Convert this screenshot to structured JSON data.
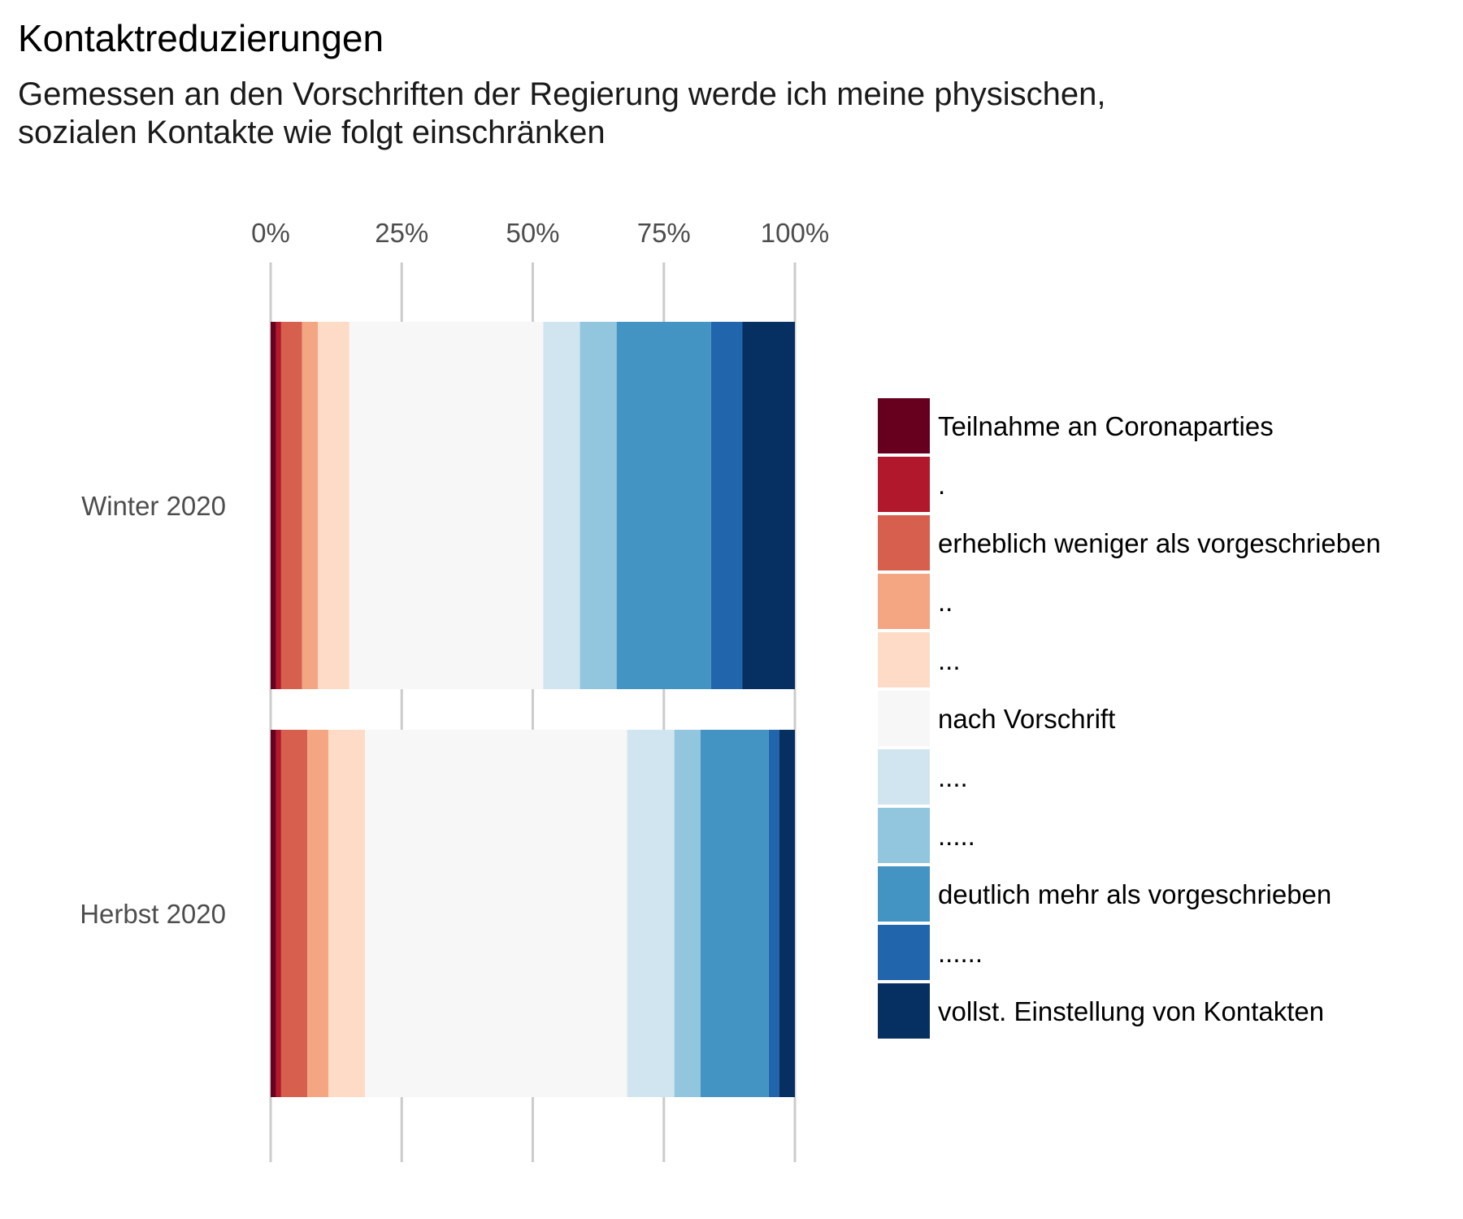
{
  "chart_data": {
    "type": "bar",
    "orientation": "horizontal",
    "stacked": "percent",
    "title": "Kontaktreduzierungen",
    "subtitle_lines": [
      "Gemessen an den Vorschriften der Regierung werde ich meine physischen,",
      "sozialen Kontakte wie folgt einschränken"
    ],
    "x_ticks": [
      "0%",
      "25%",
      "50%",
      "75%",
      "100%"
    ],
    "x_tick_values": [
      0,
      25,
      50,
      75,
      100
    ],
    "xlim": [
      0,
      100
    ],
    "x_axis_position": "top",
    "grid": "vertical major gridlines",
    "legend_position": "right",
    "categories": [
      "Winter 2020",
      "Herbst 2020"
    ],
    "series": [
      {
        "name": "Teilnahme an Coronaparties",
        "color": "#67001f",
        "values": [
          1.0,
          1.0
        ]
      },
      {
        "name": ".",
        "color": "#b2182b",
        "values": [
          1.0,
          1.0
        ]
      },
      {
        "name": "erheblich weniger als vorgeschrieben",
        "color": "#d6604d",
        "values": [
          4.0,
          5.0
        ]
      },
      {
        "name": "..",
        "color": "#f4a582",
        "values": [
          3.0,
          4.0
        ]
      },
      {
        "name": "...",
        "color": "#fddbc7",
        "values": [
          6.0,
          7.0
        ]
      },
      {
        "name": "nach Vorschrift",
        "color": "#f7f7f7",
        "values": [
          37.0,
          50.0
        ]
      },
      {
        "name": "....",
        "color": "#d1e5f0",
        "values": [
          7.0,
          9.0
        ]
      },
      {
        "name": ".....",
        "color": "#92c5de",
        "values": [
          7.0,
          5.0
        ]
      },
      {
        "name": "deutlich mehr als vorgeschrieben",
        "color": "#4393c3",
        "values": [
          18.0,
          13.0
        ]
      },
      {
        "name": "......",
        "color": "#2166ac",
        "values": [
          6.0,
          2.0
        ]
      },
      {
        "name": "vollst. Einstellung von Kontakten",
        "color": "#053061",
        "values": [
          10.0,
          3.0
        ]
      }
    ]
  }
}
